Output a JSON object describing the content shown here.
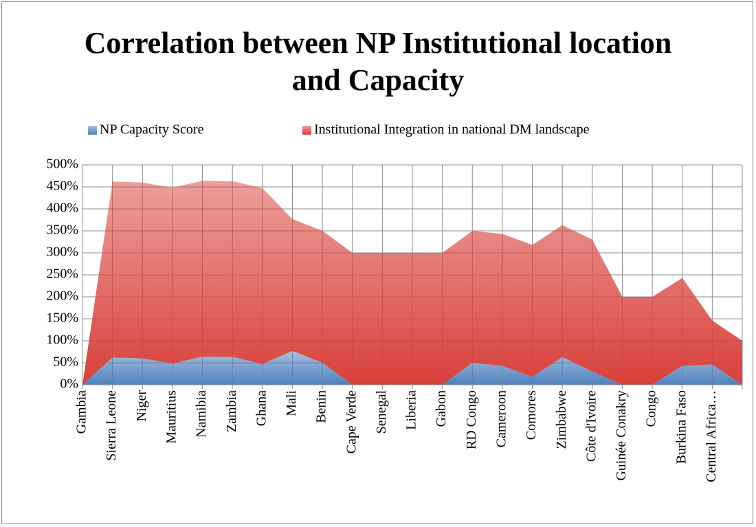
{
  "chart_data": {
    "type": "stacked_area",
    "title": "Correlation between NP Institutional location and Capacity",
    "categories": [
      "Gambia",
      "Sierra Leone",
      "Niger",
      "Mauritius",
      "Namibia",
      "Zambia",
      "Ghana",
      "Mali",
      "Benin",
      "Cape Verde",
      "Senegal",
      "Liberia",
      "Gabon",
      "RD Congo",
      "Cameroon",
      "Comores",
      "Zimbabwe",
      "Côte d'Ivoire",
      "Guinée Conakry",
      "Congo",
      "Burkina Faso",
      "Central Africa…",
      null
    ],
    "series": [
      {
        "name": "NP Capacity Score",
        "color": "#4f81bd",
        "values": [
          0,
          62,
          60,
          48,
          64,
          63,
          47,
          77,
          50,
          0,
          0,
          0,
          0,
          50,
          43,
          18,
          63,
          30,
          0,
          0,
          43,
          46,
          0
        ]
      },
      {
        "name": "Institutional Integration in national DM landscape",
        "color": "#d9403a",
        "values": [
          0,
          400,
          400,
          400,
          400,
          400,
          400,
          300,
          300,
          300,
          300,
          300,
          300,
          300,
          300,
          300,
          300,
          300,
          200,
          200,
          200,
          100,
          100
        ]
      }
    ],
    "ylim": [
      0,
      500
    ],
    "yticks": [
      {
        "value": 0,
        "label": "0%"
      },
      {
        "value": 50,
        "label": "50%"
      },
      {
        "value": 100,
        "label": "100%"
      },
      {
        "value": 150,
        "label": "150%"
      },
      {
        "value": 200,
        "label": "200%"
      },
      {
        "value": 250,
        "label": "250%"
      },
      {
        "value": 300,
        "label": "300%"
      },
      {
        "value": 350,
        "label": "350%"
      },
      {
        "value": 400,
        "label": "400%"
      },
      {
        "value": 450,
        "label": "450%"
      },
      {
        "value": 500,
        "label": "500%"
      }
    ],
    "grid": true,
    "legend": "top"
  }
}
